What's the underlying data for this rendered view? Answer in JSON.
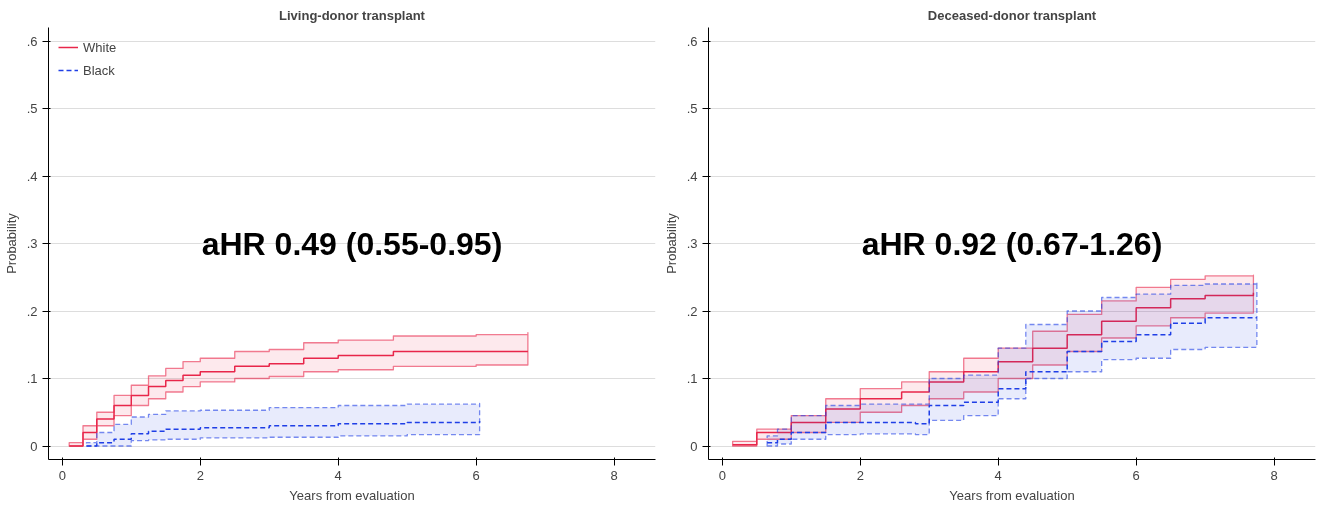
{
  "chart_data": [
    {
      "type": "step",
      "title": "Living-donor transplant",
      "xlabel": "Years from evaluation",
      "ylabel": "Probability",
      "annotations": [
        "aHR 0.49 (0.55-0.95)"
      ],
      "xlim": [
        -0.2,
        8.6
      ],
      "ylim": [
        -0.02,
        0.62
      ],
      "xticks": [
        0,
        2,
        4,
        6,
        8
      ],
      "yticks": [
        0,
        {
          "value": 0.1,
          "label": ".1"
        },
        {
          "value": 0.2,
          "label": ".2"
        },
        {
          "value": 0.3,
          "label": ".3"
        },
        {
          "value": 0.4,
          "label": ".4"
        },
        {
          "value": 0.5,
          "label": ".5"
        },
        {
          "value": 0.6,
          "label": ".6"
        }
      ],
      "grid": "y",
      "legend": "top left",
      "series": [
        {
          "name": "White",
          "color": "#e8264a",
          "line_style": "solid",
          "x": [
            0.1,
            0.3,
            0.5,
            0.75,
            1.0,
            1.25,
            1.5,
            1.75,
            2.0,
            2.5,
            3.0,
            3.5,
            4.0,
            4.8,
            6.0,
            6.75
          ],
          "values": [
            0,
            0.02,
            0.04,
            0.06,
            0.075,
            0.088,
            0.097,
            0.105,
            0.11,
            0.118,
            0.122,
            0.13,
            0.134,
            0.14,
            0.14,
            0.14
          ],
          "lower": [
            0,
            0.01,
            0.03,
            0.045,
            0.06,
            0.07,
            0.08,
            0.088,
            0.095,
            0.1,
            0.103,
            0.11,
            0.113,
            0.118,
            0.12,
            0.122
          ],
          "upper": [
            0.005,
            0.03,
            0.05,
            0.075,
            0.09,
            0.104,
            0.115,
            0.125,
            0.13,
            0.14,
            0.143,
            0.153,
            0.157,
            0.163,
            0.165,
            0.168
          ]
        },
        {
          "name": "Black",
          "color": "#1f3fe6",
          "line_style": "dashed",
          "x": [
            0.35,
            0.5,
            0.75,
            1.0,
            1.25,
            1.5,
            2.0,
            3.0,
            4.0,
            5.0,
            6.05
          ],
          "values": [
            0,
            0.005,
            0.01,
            0.018,
            0.022,
            0.025,
            0.027,
            0.03,
            0.033,
            0.035,
            0.037
          ],
          "lower": [
            0,
            0,
            0,
            0.008,
            0.009,
            0.01,
            0.012,
            0.013,
            0.015,
            0.017,
            0.018
          ],
          "upper": [
            0.005,
            0.02,
            0.032,
            0.043,
            0.047,
            0.052,
            0.053,
            0.057,
            0.06,
            0.062,
            0.063
          ]
        }
      ]
    },
    {
      "type": "step",
      "title": "Deceased-donor transplant",
      "xlabel": "Years from evaluation",
      "ylabel": "Probability",
      "annotations": [
        "aHR 0.92 (0.67-1.26)"
      ],
      "xlim": [
        -0.2,
        8.6
      ],
      "ylim": [
        -0.02,
        0.62
      ],
      "xticks": [
        0,
        2,
        4,
        6,
        8
      ],
      "yticks": [
        0,
        {
          "value": 0.1,
          "label": ".1"
        },
        {
          "value": 0.2,
          "label": ".2"
        },
        {
          "value": 0.3,
          "label": ".3"
        },
        {
          "value": 0.4,
          "label": ".4"
        },
        {
          "value": 0.5,
          "label": ".5"
        },
        {
          "value": 0.6,
          "label": ".6"
        }
      ],
      "grid": "y",
      "series": [
        {
          "color": "#e8264a",
          "line_style": "solid",
          "x": [
            0.15,
            0.5,
            1.0,
            1.5,
            2.0,
            2.6,
            3.0,
            3.5,
            4.0,
            4.5,
            5.0,
            5.5,
            6.0,
            6.5,
            7.0,
            7.7
          ],
          "values": [
            0.002,
            0.02,
            0.035,
            0.055,
            0.07,
            0.08,
            0.095,
            0.11,
            0.125,
            0.145,
            0.165,
            0.185,
            0.205,
            0.218,
            0.223,
            0.227
          ],
          "lower": [
            0,
            0.01,
            0.02,
            0.035,
            0.05,
            0.06,
            0.07,
            0.08,
            0.1,
            0.12,
            0.14,
            0.16,
            0.178,
            0.19,
            0.197,
            0.2
          ],
          "upper": [
            0.007,
            0.025,
            0.045,
            0.07,
            0.085,
            0.095,
            0.11,
            0.13,
            0.145,
            0.17,
            0.195,
            0.215,
            0.235,
            0.247,
            0.252,
            0.253
          ]
        },
        {
          "color": "#1f3fe6",
          "line_style": "dashed",
          "x": [
            0.65,
            0.8,
            1.0,
            1.5,
            2.0,
            2.8,
            3.0,
            3.5,
            4.0,
            4.4,
            5.0,
            5.5,
            6.0,
            6.5,
            7.0,
            7.75
          ],
          "values": [
            0.005,
            0.01,
            0.02,
            0.035,
            0.035,
            0.033,
            0.06,
            0.065,
            0.085,
            0.11,
            0.14,
            0.155,
            0.165,
            0.182,
            0.19,
            0.19
          ],
          "lower": [
            0,
            0.003,
            0.01,
            0.017,
            0.018,
            0.017,
            0.038,
            0.045,
            0.07,
            0.1,
            0.11,
            0.128,
            0.13,
            0.143,
            0.146,
            0.148
          ],
          "upper": [
            0.015,
            0.025,
            0.045,
            0.06,
            0.062,
            0.062,
            0.1,
            0.105,
            0.145,
            0.18,
            0.2,
            0.22,
            0.225,
            0.238,
            0.24,
            0.243
          ]
        }
      ]
    }
  ]
}
